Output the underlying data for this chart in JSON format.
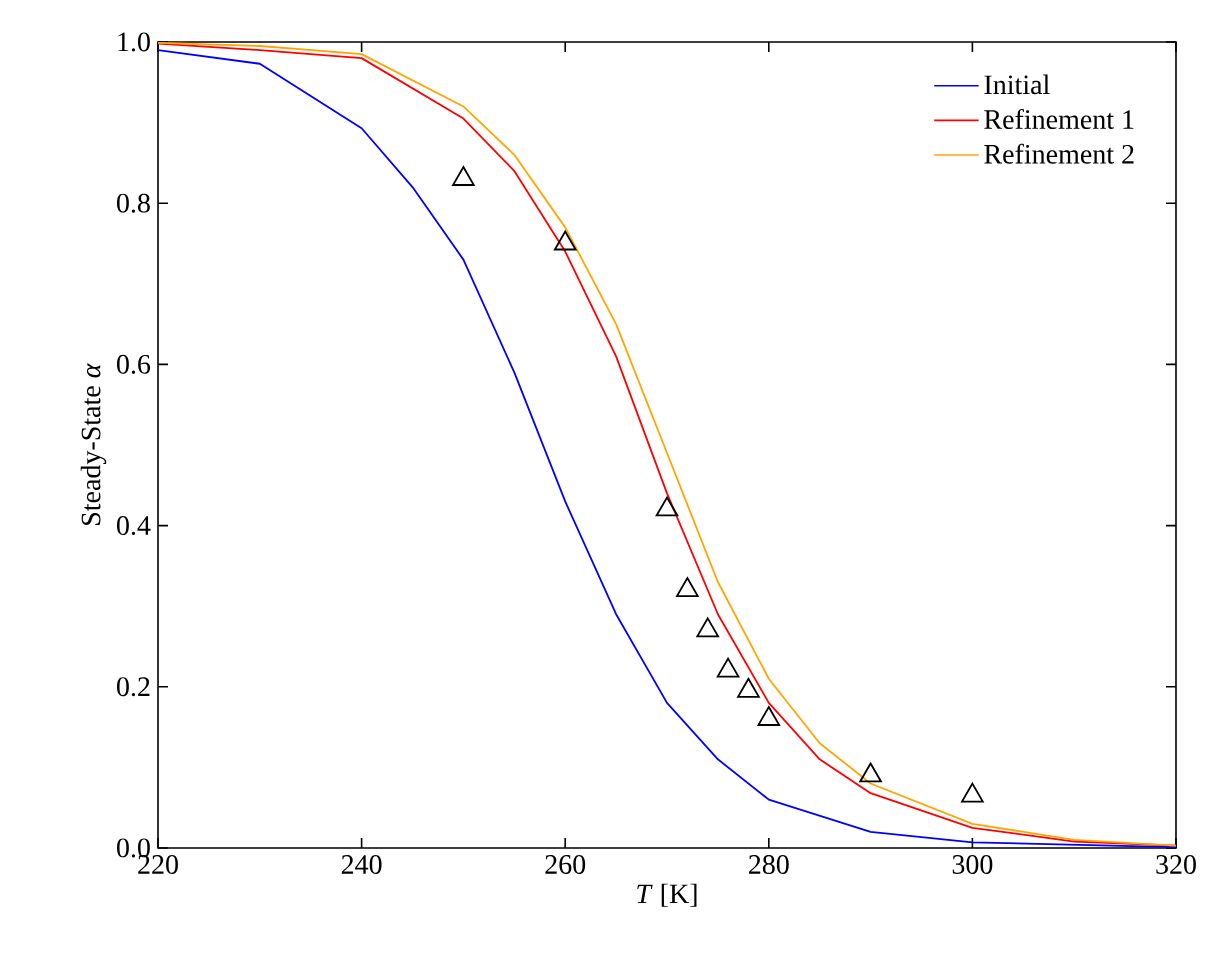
{
  "chart_data": {
    "type": "line",
    "xlabel": "*T* [K]",
    "ylabel": "Steady-State *α*",
    "xlim": [
      220,
      320
    ],
    "ylim": [
      0,
      1
    ],
    "xticks": [
      220,
      240,
      260,
      280,
      300,
      320
    ],
    "yticks": [
      {
        "value": 0,
        "label": "0.0"
      },
      {
        "value": 0.2,
        "label": "0.2"
      },
      {
        "value": 0.4,
        "label": "0.4"
      },
      {
        "value": 0.6,
        "label": "0.6"
      },
      {
        "value": 0.8,
        "label": "0.8"
      },
      {
        "value": 1,
        "label": "1.0"
      }
    ],
    "legend": "top right",
    "line_style": "solid",
    "series": [
      {
        "name": "Initial",
        "color": "#0000ff",
        "x": [
          220,
          230,
          240,
          245,
          250,
          255,
          260,
          265,
          270,
          275,
          280,
          290,
          300,
          320
        ],
        "values": [
          0.99,
          0.973,
          0.893,
          0.82,
          0.73,
          0.59,
          0.43,
          0.29,
          0.18,
          0.11,
          0.06,
          0.02,
          0.007,
          0.001
        ]
      },
      {
        "name": "Refinement 1",
        "color": "#ff0000",
        "x": [
          220,
          230,
          240,
          250,
          255,
          260,
          265,
          270,
          275,
          280,
          285,
          290,
          300,
          310,
          320
        ],
        "values": [
          0.998,
          0.99,
          0.98,
          0.905,
          0.84,
          0.74,
          0.61,
          0.44,
          0.29,
          0.18,
          0.11,
          0.068,
          0.025,
          0.008,
          0.003
        ]
      },
      {
        "name": "Refinement 2",
        "color": "#ffa500",
        "x": [
          220,
          230,
          240,
          250,
          255,
          260,
          265,
          270,
          275,
          280,
          285,
          290,
          300,
          310,
          320
        ],
        "values": [
          0.999,
          0.995,
          0.985,
          0.92,
          0.86,
          0.77,
          0.65,
          0.49,
          0.33,
          0.21,
          0.13,
          0.08,
          0.03,
          0.01,
          0.003
        ]
      },
      {
        "type": "scatter",
        "marker": "triangle",
        "color": "#000000",
        "x": [
          250,
          260,
          270,
          272,
          274,
          276,
          278,
          280,
          290,
          300
        ],
        "values": [
          0.83,
          0.75,
          0.42,
          0.32,
          0.27,
          0.22,
          0.195,
          0.16,
          0.09,
          0.065
        ]
      }
    ]
  }
}
